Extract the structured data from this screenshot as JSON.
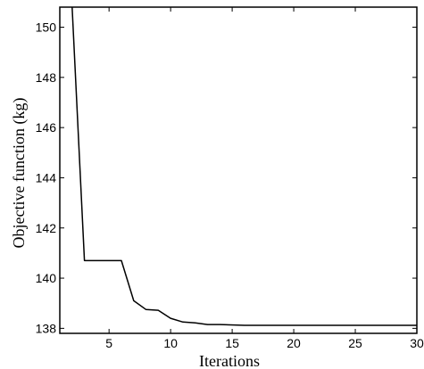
{
  "chart_data": {
    "type": "line",
    "title": "",
    "xlabel": "Iterations",
    "ylabel": "Objective function (kg)",
    "xlim": [
      1,
      30
    ],
    "ylim": [
      137.8,
      150.8
    ],
    "grid": false,
    "legend": "none",
    "x_ticks": [
      5,
      10,
      15,
      20,
      25,
      30
    ],
    "y_ticks": [
      138,
      140,
      142,
      144,
      146,
      148,
      150
    ],
    "series": [
      {
        "color": "#000000",
        "points": [
          {
            "x": 2,
            "y": 150.8
          },
          {
            "x": 3,
            "y": 140.7
          },
          {
            "x": 4,
            "y": 140.7
          },
          {
            "x": 5,
            "y": 140.7
          },
          {
            "x": 6,
            "y": 140.7
          },
          {
            "x": 7,
            "y": 139.1
          },
          {
            "x": 8,
            "y": 138.75
          },
          {
            "x": 9,
            "y": 138.72
          },
          {
            "x": 10,
            "y": 138.4
          },
          {
            "x": 11,
            "y": 138.25
          },
          {
            "x": 12,
            "y": 138.22
          },
          {
            "x": 13,
            "y": 138.15
          },
          {
            "x": 14,
            "y": 138.15
          },
          {
            "x": 16,
            "y": 138.12
          },
          {
            "x": 20,
            "y": 138.12
          },
          {
            "x": 25,
            "y": 138.12
          },
          {
            "x": 30,
            "y": 138.12
          }
        ]
      }
    ]
  }
}
